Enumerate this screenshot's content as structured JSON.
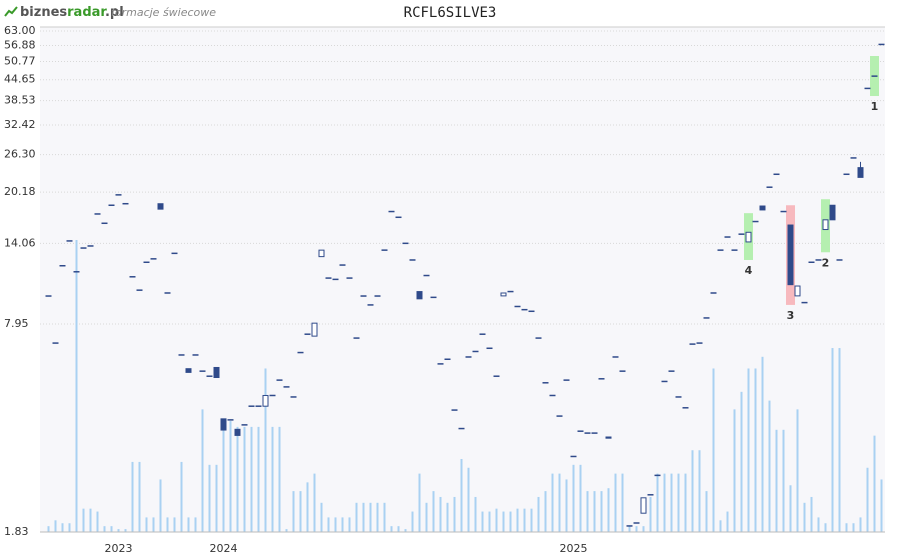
{
  "brand": [
    "biznes",
    "radar",
    ".pl"
  ],
  "subtitle": "formacje świecowe",
  "chart_data": {
    "type": "candlestick",
    "title": "RCFL6SILVE3",
    "log_scale": true,
    "grid": true,
    "ylim": [
      1.83,
      63.0
    ],
    "yticks": [
      1.83,
      7.95,
      14.06,
      20.18,
      {
        "value": 26.3,
        "label": "26.30"
      },
      32.42,
      38.53,
      44.65,
      50.77,
      56.88,
      {
        "value": 63.0,
        "label": "63.00"
      }
    ],
    "up_color": "#ffffff",
    "down_color": "#2f4a8a",
    "edge_color": "#2f4a8a",
    "volume_color": "#a9d1f2",
    "categories": [
      null,
      null,
      null,
      null,
      null,
      null,
      null,
      null,
      null,
      null,
      "2023",
      null,
      null,
      null,
      null,
      null,
      null,
      null,
      null,
      null,
      null,
      null,
      null,
      null,
      null,
      "2024",
      null,
      null,
      null,
      null,
      null,
      null,
      null,
      null,
      null,
      null,
      null,
      null,
      null,
      null,
      null,
      null,
      null,
      null,
      null,
      null,
      null,
      null,
      null,
      null,
      null,
      null,
      null,
      null,
      null,
      null,
      null,
      null,
      null,
      null,
      null,
      null,
      null,
      null,
      null,
      null,
      null,
      null,
      null,
      null,
      null,
      null,
      null,
      null,
      null,
      "2025",
      null,
      null,
      null,
      null,
      null,
      null,
      null,
      null,
      null,
      null,
      null,
      null,
      null,
      null,
      null,
      null,
      null,
      null,
      null,
      null,
      null,
      null,
      null,
      null,
      null,
      null,
      null,
      null,
      null,
      null,
      null,
      null,
      null,
      null,
      null,
      null,
      null,
      null,
      null,
      null,
      null,
      null,
      null,
      null
    ],
    "candles": [
      [
        9.69,
        9.69,
        9.69,
        9.69
      ],
      [
        6.95,
        6.95,
        6.95,
        6.95
      ],
      [
        12.0,
        12.0,
        12.0,
        12.0
      ],
      [
        14.3,
        14.3,
        14.3,
        14.3
      ],
      [
        11.5,
        11.5,
        11.5,
        11.5
      ],
      [
        13.6,
        13.6,
        13.6,
        13.6
      ],
      [
        13.8,
        13.8,
        13.8,
        13.8
      ],
      [
        17.3,
        17.3,
        17.3,
        17.3
      ],
      [
        16.2,
        16.2,
        16.2,
        16.2
      ],
      [
        18.4,
        18.4,
        18.4,
        18.4
      ],
      [
        19.8,
        19.8,
        19.8,
        19.8
      ],
      [
        18.6,
        18.6,
        18.6,
        18.6
      ],
      [
        11.1,
        11.1,
        11.1,
        11.1
      ],
      [
        10.1,
        10.1,
        10.1,
        10.1
      ],
      [
        12.3,
        12.3,
        12.3,
        12.3
      ],
      [
        12.6,
        12.6,
        12.6,
        12.6
      ],
      [
        18.6,
        18.6,
        17.9,
        17.9
      ],
      [
        9.9,
        9.9,
        9.9,
        9.9
      ],
      [
        13.1,
        13.1,
        13.1,
        13.1
      ],
      [
        6.39,
        6.39,
        6.39,
        6.39
      ],
      [
        5.8,
        5.8,
        5.65,
        5.65
      ],
      [
        6.39,
        6.39,
        6.39,
        6.39
      ],
      [
        5.7,
        5.7,
        5.7,
        5.7
      ],
      [
        5.5,
        5.5,
        5.5,
        5.5
      ],
      [
        5.85,
        5.85,
        5.45,
        5.45
      ],
      [
        4.07,
        4.07,
        3.76,
        3.76
      ],
      [
        4.04,
        4.04,
        4.04,
        4.04
      ],
      [
        3.78,
        3.78,
        3.62,
        3.62
      ],
      [
        3.9,
        3.9,
        3.9,
        3.9
      ],
      [
        4.45,
        4.45,
        4.45,
        4.45
      ],
      [
        4.45,
        4.45,
        4.45,
        4.45
      ],
      [
        4.45,
        4.8,
        4.45,
        4.8
      ],
      [
        4.8,
        4.8,
        4.8,
        4.8
      ],
      [
        5.35,
        5.35,
        5.35,
        5.35
      ],
      [
        5.1,
        5.1,
        5.1,
        5.1
      ],
      [
        4.75,
        4.75,
        4.75,
        4.75
      ],
      [
        6.5,
        6.5,
        6.5,
        6.5
      ],
      [
        7.4,
        7.4,
        7.4,
        7.4
      ],
      [
        7.3,
        8.0,
        7.3,
        8.0
      ],
      [
        12.8,
        13.4,
        12.8,
        13.4
      ],
      [
        11.0,
        11.0,
        11.0,
        11.0
      ],
      [
        10.9,
        10.9,
        10.9,
        10.9
      ],
      [
        12.06,
        12.06,
        12.06,
        12.06
      ],
      [
        11.0,
        11.0,
        11.0,
        11.0
      ],
      [
        7.2,
        7.2,
        7.2,
        7.2
      ],
      [
        9.69,
        9.69,
        9.69,
        9.69
      ],
      [
        9.1,
        9.1,
        9.1,
        9.1
      ],
      [
        9.69,
        9.69,
        9.69,
        9.69
      ],
      [
        13.4,
        13.4,
        13.4,
        13.4
      ],
      [
        17.6,
        17.6,
        17.6,
        17.6
      ],
      [
        16.9,
        16.9,
        16.9,
        16.9
      ],
      [
        14.06,
        14.06,
        14.06,
        14.06
      ],
      [
        12.5,
        12.5,
        12.5,
        12.5
      ],
      [
        10.0,
        10.0,
        9.5,
        9.5
      ],
      [
        11.2,
        11.2,
        11.2,
        11.2
      ],
      [
        9.6,
        9.6,
        9.6,
        9.6
      ],
      [
        6.0,
        6.0,
        6.0,
        6.0
      ],
      [
        6.2,
        6.2,
        6.2,
        6.2
      ],
      [
        4.33,
        4.33,
        4.33,
        4.33
      ],
      [
        3.8,
        3.8,
        3.8,
        3.8
      ],
      [
        6.3,
        6.3,
        6.3,
        6.3
      ],
      [
        6.55,
        6.55,
        6.55,
        6.55
      ],
      [
        7.4,
        7.4,
        7.4,
        7.4
      ],
      [
        6.7,
        6.7,
        6.7,
        6.7
      ],
      [
        5.5,
        5.5,
        5.5,
        5.5
      ],
      [
        9.7,
        9.9,
        9.7,
        9.9
      ],
      [
        10.0,
        10.0,
        10.0,
        10.0
      ],
      [
        9.0,
        9.0,
        9.0,
        9.0
      ],
      [
        8.8,
        8.8,
        8.8,
        8.8
      ],
      [
        8.7,
        8.7,
        8.7,
        8.7
      ],
      [
        7.2,
        7.2,
        7.2,
        7.2
      ],
      [
        5.25,
        5.25,
        5.25,
        5.25
      ],
      [
        4.8,
        4.8,
        4.8,
        4.8
      ],
      [
        4.15,
        4.15,
        4.15,
        4.15
      ],
      [
        5.35,
        5.35,
        5.35,
        5.35
      ],
      [
        3.12,
        3.12,
        3.12,
        3.12
      ],
      [
        3.73,
        3.73,
        3.73,
        3.73
      ],
      [
        3.68,
        3.68,
        3.68,
        3.68
      ],
      [
        3.68,
        3.68,
        3.68,
        3.68
      ],
      [
        5.4,
        5.4,
        5.4,
        5.4
      ],
      [
        3.58,
        3.58,
        3.55,
        3.55
      ],
      [
        6.3,
        6.3,
        6.3,
        6.3
      ],
      [
        5.7,
        5.7,
        5.7,
        5.7
      ],
      [
        1.91,
        1.91,
        1.91,
        1.91
      ],
      [
        1.95,
        1.95,
        1.95,
        1.95
      ],
      [
        2.09,
        2.33,
        2.09,
        2.33
      ],
      [
        2.38,
        2.38,
        2.38,
        2.38
      ],
      [
        2.73,
        2.73,
        2.73,
        2.73
      ],
      [
        5.3,
        5.3,
        5.3,
        5.3
      ],
      [
        5.7,
        5.7,
        5.7,
        5.7
      ],
      [
        4.75,
        4.75,
        4.75,
        4.75
      ],
      [
        4.4,
        4.4,
        4.4,
        4.4
      ],
      [
        6.9,
        6.9,
        6.9,
        6.9
      ],
      [
        6.95,
        6.95,
        6.95,
        6.95
      ],
      [
        8.3,
        8.3,
        8.3,
        8.3
      ],
      [
        9.9,
        9.9,
        9.9,
        9.9
      ],
      [
        13.4,
        13.4,
        13.4,
        13.4
      ],
      [
        14.7,
        14.7,
        14.7,
        14.7
      ],
      [
        13.4,
        13.4,
        13.4,
        13.4
      ],
      [
        15.0,
        15.0,
        15.0,
        15.0
      ],
      [
        14.2,
        15.2,
        14.2,
        15.2
      ],
      [
        16.4,
        16.4,
        16.4,
        16.4
      ],
      [
        18.3,
        18.3,
        17.8,
        17.8
      ],
      [
        20.9,
        20.9,
        20.9,
        20.9
      ],
      [
        22.9,
        22.9,
        22.9,
        22.9
      ],
      [
        17.6,
        17.6,
        17.6,
        17.6
      ],
      [
        16.0,
        16.0,
        10.5,
        10.5
      ],
      [
        9.7,
        10.4,
        9.7,
        10.4
      ],
      [
        9.25,
        9.25,
        9.25,
        9.25
      ],
      [
        12.3,
        12.3,
        12.3,
        12.3
      ],
      [
        12.5,
        12.5,
        12.5,
        12.5
      ],
      [
        15.5,
        16.6,
        15.5,
        16.6
      ],
      [
        18.4,
        18.4,
        16.6,
        16.6
      ],
      [
        12.5,
        12.5,
        12.5,
        12.5
      ],
      [
        22.9,
        22.9,
        22.9,
        22.9
      ],
      [
        25.7,
        25.7,
        25.7,
        25.7
      ],
      [
        24.0,
        25.0,
        22.4,
        22.4
      ],
      [
        42.0,
        42.0,
        42.0,
        42.0
      ],
      [
        45.8,
        45.8,
        45.8,
        45.8
      ],
      [
        57.3,
        57.3,
        57.3,
        57.3
      ]
    ],
    "volume": [
      2,
      4,
      3,
      3,
      100,
      8,
      8,
      7,
      2,
      2,
      1,
      1,
      24,
      24,
      5,
      5,
      18,
      5,
      5,
      24,
      5,
      5,
      42,
      23,
      23,
      35,
      38,
      36,
      36,
      36,
      36,
      56,
      36,
      36,
      1,
      14,
      14,
      17,
      20,
      10,
      5,
      5,
      5,
      5,
      10,
      10,
      10,
      10,
      10,
      2,
      2,
      1,
      7,
      20,
      10,
      14,
      12,
      10,
      12,
      25,
      22,
      12,
      7,
      7,
      8,
      7,
      7,
      8,
      8,
      8,
      12,
      14,
      20,
      20,
      18,
      23,
      23,
      14,
      14,
      14,
      15,
      20,
      20,
      2,
      2,
      2,
      12,
      20,
      20,
      20,
      20,
      20,
      28,
      28,
      14,
      56,
      4,
      7,
      42,
      48,
      56,
      56,
      60,
      45,
      35,
      35,
      16,
      42,
      10,
      12,
      5,
      3,
      63,
      63,
      3,
      3,
      5,
      22,
      33,
      18
    ],
    "patterns": [
      {
        "label": "1",
        "color": "#b5efb0",
        "candle": 118,
        "range": [
          39.8,
          52.8
        ]
      },
      {
        "label": "2",
        "color": "#b5efb0",
        "candle": 111,
        "range": [
          13.2,
          19.2
        ]
      },
      {
        "label": "3",
        "color": "#f7b9be",
        "candle": 106,
        "range": [
          9.1,
          18.4
        ]
      },
      {
        "label": "4",
        "color": "#b5efb0",
        "candle": 100,
        "range": [
          12.5,
          17.4
        ]
      }
    ]
  }
}
